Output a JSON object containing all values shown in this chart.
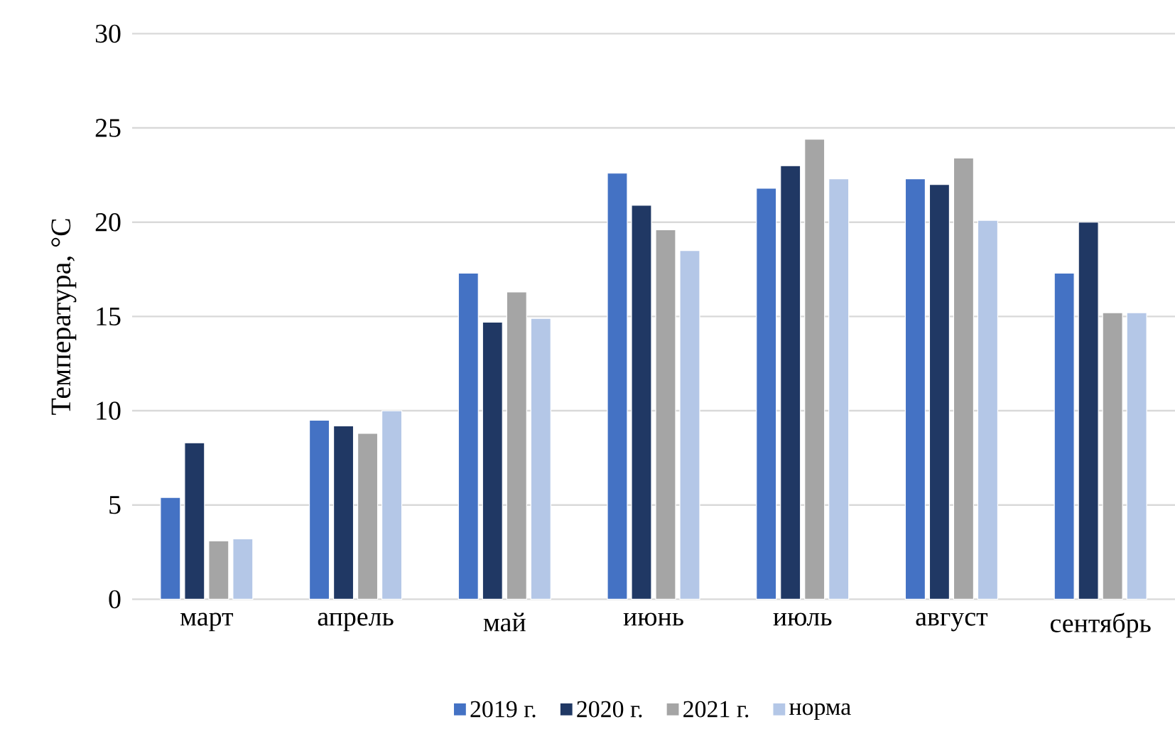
{
  "chart_data": {
    "type": "bar",
    "ylabel": "Температура, °C",
    "categories": [
      "март",
      "апрель",
      "май",
      "июнь",
      "июль",
      "август",
      "сентябрь"
    ],
    "series": [
      {
        "name": "2019 г.",
        "color": "#4472c4",
        "values": [
          5.4,
          9.5,
          17.3,
          22.6,
          21.8,
          22.3,
          17.3
        ]
      },
      {
        "name": "2020 г.",
        "color": "#203864",
        "values": [
          8.3,
          9.2,
          14.7,
          20.9,
          23.0,
          22.0,
          20.0
        ]
      },
      {
        "name": "2021 г.",
        "color": "#a5a5a5",
        "values": [
          3.1,
          8.8,
          16.3,
          19.6,
          24.4,
          23.4,
          15.2
        ]
      },
      {
        "name": "норма",
        "color": "#b4c7e7",
        "values": [
          3.2,
          10.0,
          14.9,
          18.5,
          22.3,
          20.1,
          15.2
        ]
      }
    ],
    "ylim": [
      0,
      30
    ],
    "yticks": [
      0,
      5,
      10,
      15,
      20,
      25,
      30
    ],
    "grid": "y",
    "legend": "bottom"
  }
}
